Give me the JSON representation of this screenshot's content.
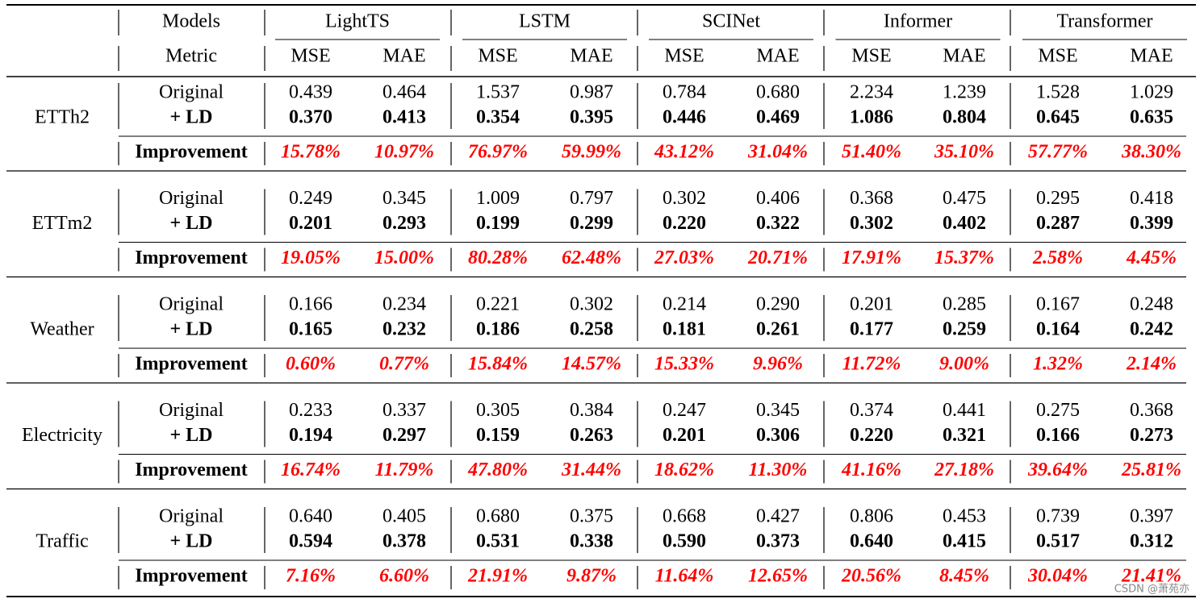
{
  "table": {
    "header": {
      "models_label": "Models",
      "metric_label": "Metric",
      "models": [
        "LightTS",
        "LSTM",
        "SCINet",
        "Informer",
        "Transformer"
      ],
      "metrics": [
        "MSE",
        "MAE",
        "MSE",
        "MAE",
        "MSE",
        "MAE",
        "MSE",
        "MAE",
        "MSE",
        "MAE"
      ]
    },
    "groups": [
      {
        "dataset": "ETTh2",
        "rows": [
          {
            "label": "Original",
            "values": [
              "0.439",
              "0.464",
              "1.537",
              "0.987",
              "0.784",
              "0.680",
              "2.234",
              "1.239",
              "1.528",
              "1.029"
            ]
          },
          {
            "label": "+ LD",
            "values": [
              "0.370",
              "0.413",
              "0.354",
              "0.395",
              "0.446",
              "0.469",
              "1.086",
              "0.804",
              "0.645",
              "0.635"
            ]
          },
          {
            "label": "Improvement",
            "values": [
              "15.78%",
              "10.97%",
              "76.97%",
              "59.99%",
              "43.12%",
              "31.04%",
              "51.40%",
              "35.10%",
              "57.77%",
              "38.30%"
            ]
          }
        ]
      },
      {
        "dataset": "ETTm2",
        "rows": [
          {
            "label": "Original",
            "values": [
              "0.249",
              "0.345",
              "1.009",
              "0.797",
              "0.302",
              "0.406",
              "0.368",
              "0.475",
              "0.295",
              "0.418"
            ]
          },
          {
            "label": "+ LD",
            "values": [
              "0.201",
              "0.293",
              "0.199",
              "0.299",
              "0.220",
              "0.322",
              "0.302",
              "0.402",
              "0.287",
              "0.399"
            ]
          },
          {
            "label": "Improvement",
            "values": [
              "19.05%",
              "15.00%",
              "80.28%",
              "62.48%",
              "27.03%",
              "20.71%",
              "17.91%",
              "15.37%",
              "2.58%",
              "4.45%"
            ]
          }
        ]
      },
      {
        "dataset": "Weather",
        "rows": [
          {
            "label": "Original",
            "values": [
              "0.166",
              "0.234",
              "0.221",
              "0.302",
              "0.214",
              "0.290",
              "0.201",
              "0.285",
              "0.167",
              "0.248"
            ]
          },
          {
            "label": "+ LD",
            "values": [
              "0.165",
              "0.232",
              "0.186",
              "0.258",
              "0.181",
              "0.261",
              "0.177",
              "0.259",
              "0.164",
              "0.242"
            ]
          },
          {
            "label": "Improvement",
            "values": [
              "0.60%",
              "0.77%",
              "15.84%",
              "14.57%",
              "15.33%",
              "9.96%",
              "11.72%",
              "9.00%",
              "1.32%",
              "2.14%"
            ]
          }
        ]
      },
      {
        "dataset": "Electricity",
        "rows": [
          {
            "label": "Original",
            "values": [
              "0.233",
              "0.337",
              "0.305",
              "0.384",
              "0.247",
              "0.345",
              "0.374",
              "0.441",
              "0.275",
              "0.368"
            ]
          },
          {
            "label": "+ LD",
            "values": [
              "0.194",
              "0.297",
              "0.159",
              "0.263",
              "0.201",
              "0.306",
              "0.220",
              "0.321",
              "0.166",
              "0.273"
            ]
          },
          {
            "label": "Improvement",
            "values": [
              "16.74%",
              "11.79%",
              "47.80%",
              "31.44%",
              "18.62%",
              "11.30%",
              "41.16%",
              "27.18%",
              "39.64%",
              "25.81%"
            ]
          }
        ]
      },
      {
        "dataset": "Traffic",
        "rows": [
          {
            "label": "Original",
            "values": [
              "0.640",
              "0.405",
              "0.680",
              "0.375",
              "0.668",
              "0.427",
              "0.806",
              "0.453",
              "0.739",
              "0.397"
            ]
          },
          {
            "label": "+ LD",
            "values": [
              "0.594",
              "0.378",
              "0.531",
              "0.338",
              "0.590",
              "0.373",
              "0.640",
              "0.415",
              "0.517",
              "0.312"
            ]
          },
          {
            "label": "Improvement",
            "values": [
              "7.16%",
              "6.60%",
              "21.91%",
              "9.87%",
              "11.64%",
              "12.65%",
              "20.56%",
              "8.45%",
              "30.04%",
              "21.41%"
            ]
          }
        ]
      }
    ],
    "watermark": "CSDN @萧苑亦"
  }
}
